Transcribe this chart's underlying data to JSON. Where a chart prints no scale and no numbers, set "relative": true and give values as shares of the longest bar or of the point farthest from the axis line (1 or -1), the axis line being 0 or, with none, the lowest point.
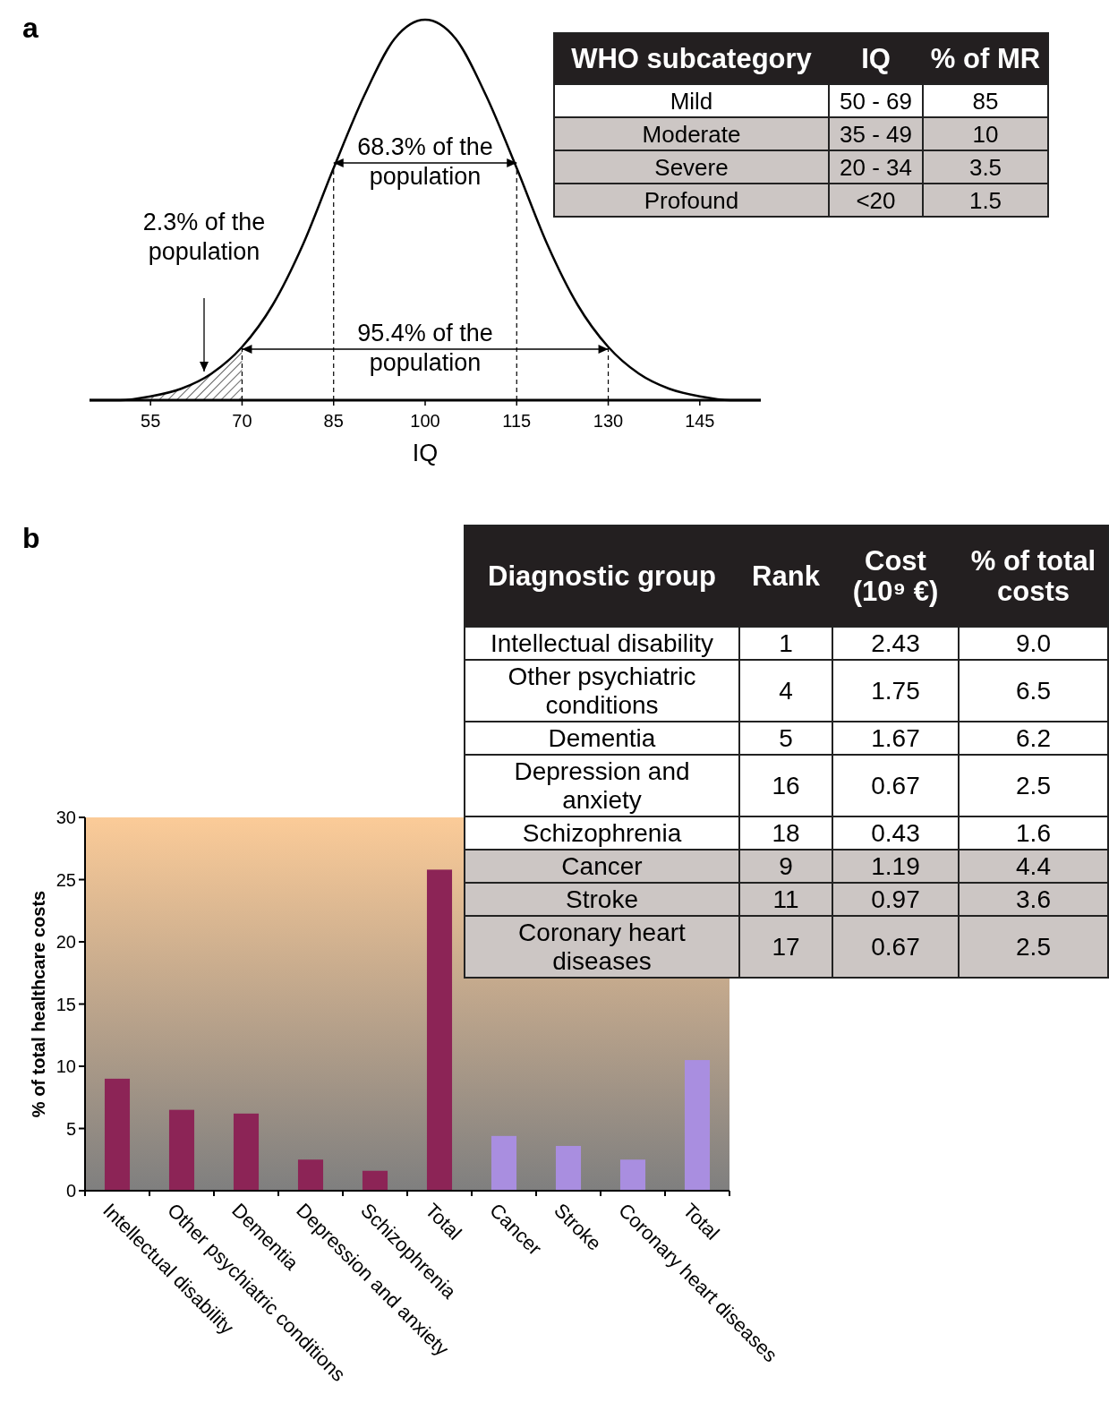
{
  "chart_data": [
    {
      "type": "line",
      "title": "a",
      "xlabel": "IQ",
      "relative": true,
      "marker": "none",
      "tick_labels": "x",
      "x": [
        45,
        50,
        55,
        60,
        65,
        70,
        75,
        80,
        85,
        90,
        95,
        100,
        105,
        110,
        115,
        120,
        125,
        130,
        135,
        140,
        145,
        150,
        155
      ],
      "series": [
        {
          "color": "#000000",
          "values": [
            0,
            0,
            0.01,
            0.03,
            0.07,
            0.14,
            0.25,
            0.41,
            0.61,
            0.8,
            0.95,
            1,
            0.95,
            0.8,
            0.61,
            0.41,
            0.25,
            0.14,
            0.07,
            0.03,
            0.01,
            0,
            0
          ]
        }
      ],
      "xlim": [
        45,
        155
      ],
      "xticks": [
        55,
        70,
        85,
        100,
        115,
        130,
        145
      ],
      "ref_lines": [
        {
          "axis": "x",
          "value": 70,
          "line_style": "dashed"
        },
        {
          "axis": "x",
          "value": 85,
          "line_style": "dashed"
        },
        {
          "axis": "x",
          "value": 115,
          "line_style": "dashed"
        },
        {
          "axis": "x",
          "value": 130,
          "line_style": "dashed"
        }
      ],
      "bands": [
        {
          "axis": "x",
          "from": 55,
          "to": 70
        }
      ],
      "annotations": [
        "68.3% of the population",
        "95.4% of the population",
        "2.3% of the population"
      ]
    },
    {
      "type": "other",
      "categories": [
        "WHO subcategory",
        "IQ",
        "% of MR"
      ],
      "y_categories": [
        "Mild",
        "Moderate",
        "Severe",
        "Profound"
      ],
      "cell_labels": [
        [
          "50 - 69",
          "85"
        ],
        [
          "35 - 49",
          "10"
        ],
        [
          "20 - 34",
          "3.5"
        ],
        [
          "<20",
          "1.5"
        ]
      ],
      "colors": [
        "#231f20",
        "#ffffff",
        "#ccc6c4",
        "#ccc6c4",
        "#ccc6c4"
      ]
    },
    {
      "type": "bar",
      "title": "b",
      "ylabel": "% of total healthcare costs",
      "categories": [
        "Intellectual disability",
        "Other psychiatric conditions",
        "Dementia",
        "Depression and anxiety",
        "Schizophrenia",
        "Total",
        "Cancer",
        "Stroke",
        "Coronary heart diseases",
        "Total"
      ],
      "values": [
        9.0,
        6.5,
        6.2,
        2.5,
        1.6,
        25.8,
        4.4,
        3.6,
        2.5,
        10.5
      ],
      "colors": [
        "#8c2456",
        "#8c2456",
        "#8c2456",
        "#8c2456",
        "#8c2456",
        "#8c2456",
        "#a98ee0",
        "#a98ee0",
        "#a98ee0",
        "#a98ee0"
      ],
      "ylim": [
        0,
        30
      ],
      "yticks": [
        0,
        5,
        10,
        15,
        20,
        25,
        30
      ]
    },
    {
      "type": "other",
      "categories": [
        "Diagnostic group",
        "Rank",
        "Cost (10⁹ €)",
        "% of total costs"
      ],
      "y_categories": [
        "Intellectual disability",
        "Other psychiatric conditions",
        "Dementia",
        "Depression and anxiety",
        "Schizophrenia",
        "Cancer",
        "Stroke",
        "Coronary heart diseases"
      ],
      "cell_labels": [
        [
          "1",
          "2.43",
          "9.0"
        ],
        [
          "4",
          "1.75",
          "6.5"
        ],
        [
          "5",
          "1.67",
          "6.2"
        ],
        [
          "16",
          "0.67",
          "2.5"
        ],
        [
          "18",
          "0.43",
          "1.6"
        ],
        [
          "9",
          "1.19",
          "4.4"
        ],
        [
          "11",
          "0.97",
          "3.6"
        ],
        [
          "17",
          "0.67",
          "2.5"
        ]
      ],
      "colors": [
        "#231f20",
        "#ffffff",
        "#ffffff",
        "#ffffff",
        "#ffffff",
        "#ffffff",
        "#ccc6c4",
        "#ccc6c4",
        "#ccc6c4"
      ]
    }
  ]
}
